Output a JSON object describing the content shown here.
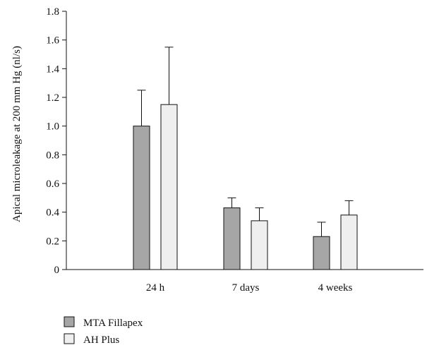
{
  "chart_data": {
    "type": "bar",
    "title": "",
    "xlabel": "",
    "ylabel": "Apical microleakage at 200 mm Hg (nl/s)",
    "ylim": [
      0,
      1.8
    ],
    "yticks": [
      0,
      0.2,
      0.4,
      0.6,
      0.8,
      1.0,
      1.2,
      1.4,
      1.6,
      1.8
    ],
    "ytick_labels": [
      "0",
      "0.2",
      "0.4",
      "0.6",
      "0.8",
      "1.0",
      "1.2",
      "1.4",
      "1.6",
      "1.8"
    ],
    "categories": [
      "24 h",
      "7 days",
      "4 weeks"
    ],
    "series": [
      {
        "name": "MTA Fillapex",
        "values": [
          1.0,
          0.43,
          0.23
        ],
        "errors": [
          0.25,
          0.07,
          0.1
        ],
        "color": "#a6a6a6"
      },
      {
        "name": "AH Plus",
        "values": [
          1.15,
          0.34,
          0.38
        ],
        "errors": [
          0.4,
          0.09,
          0.1
        ],
        "color": "#efefef"
      }
    ],
    "grid": false,
    "legend_position": "bottom-left"
  }
}
